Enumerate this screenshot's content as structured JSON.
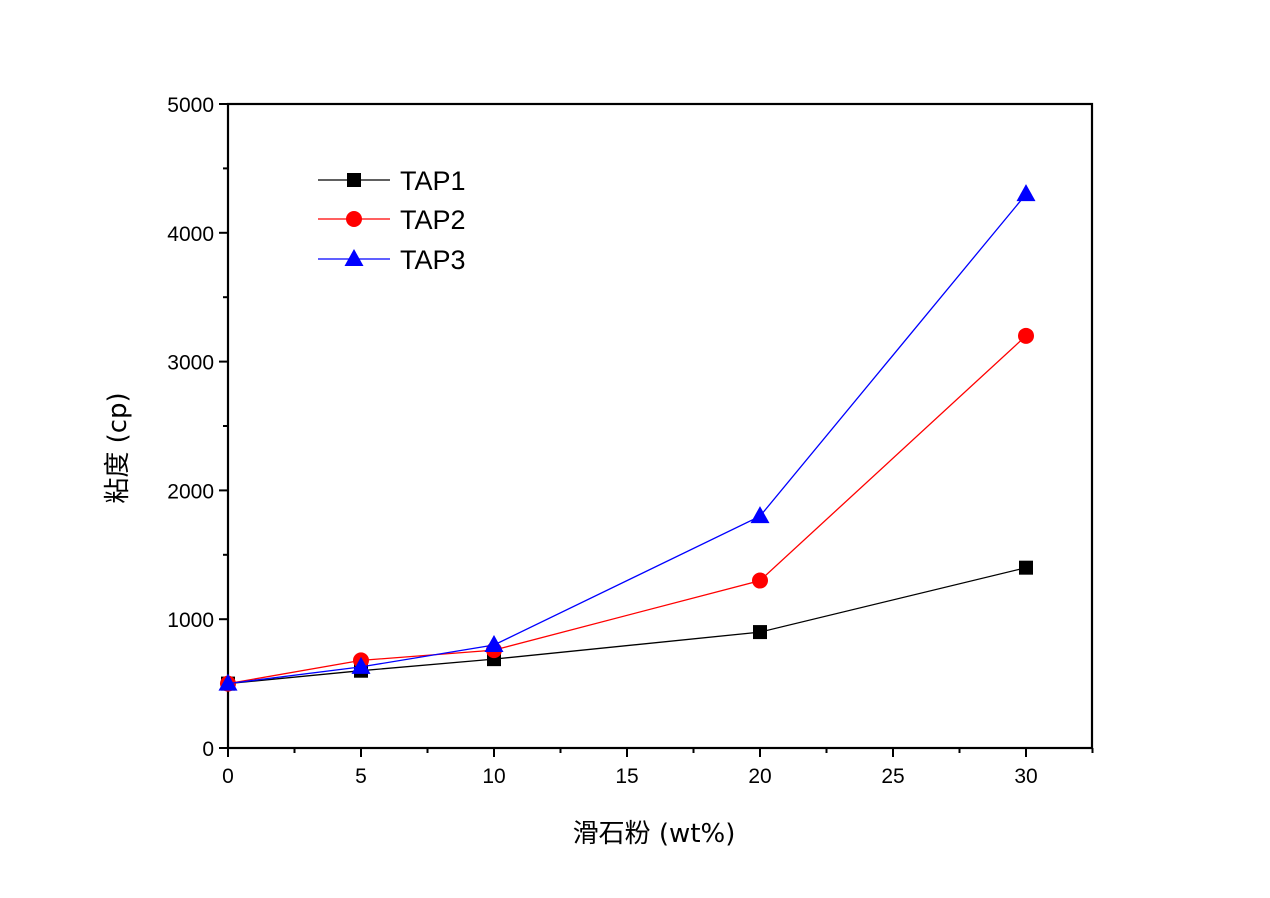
{
  "chart_data": {
    "type": "line",
    "title": "",
    "xlabel": "滑石粉 (wt%)",
    "ylabel": "粘度 (cp)",
    "xlim": [
      0,
      32.5
    ],
    "ylim": [
      0,
      5000
    ],
    "x_ticks": [
      0,
      5,
      10,
      15,
      20,
      25,
      30
    ],
    "x_tick_labels": [
      "0",
      "5",
      "10",
      "15",
      "20",
      "25",
      "30"
    ],
    "x_minor_step": 2.5,
    "y_ticks": [
      0,
      1000,
      2000,
      3000,
      4000,
      5000
    ],
    "y_tick_labels": [
      "0",
      "1000",
      "2000",
      "3000",
      "4000",
      "5000"
    ],
    "y_minor_step": 500,
    "grid": false,
    "legend_position": "top-left",
    "x": [
      0,
      5,
      10,
      20,
      30
    ],
    "series": [
      {
        "name": "TAP1",
        "color": "#000000",
        "marker": "square",
        "values": [
          500,
          600,
          690,
          900,
          1400
        ]
      },
      {
        "name": "TAP2",
        "color": "#ff0000",
        "marker": "circle",
        "values": [
          500,
          680,
          760,
          1300,
          3200
        ]
      },
      {
        "name": "TAP3",
        "color": "#0000ff",
        "marker": "triangle",
        "values": [
          500,
          630,
          800,
          1800,
          4300
        ]
      }
    ]
  }
}
